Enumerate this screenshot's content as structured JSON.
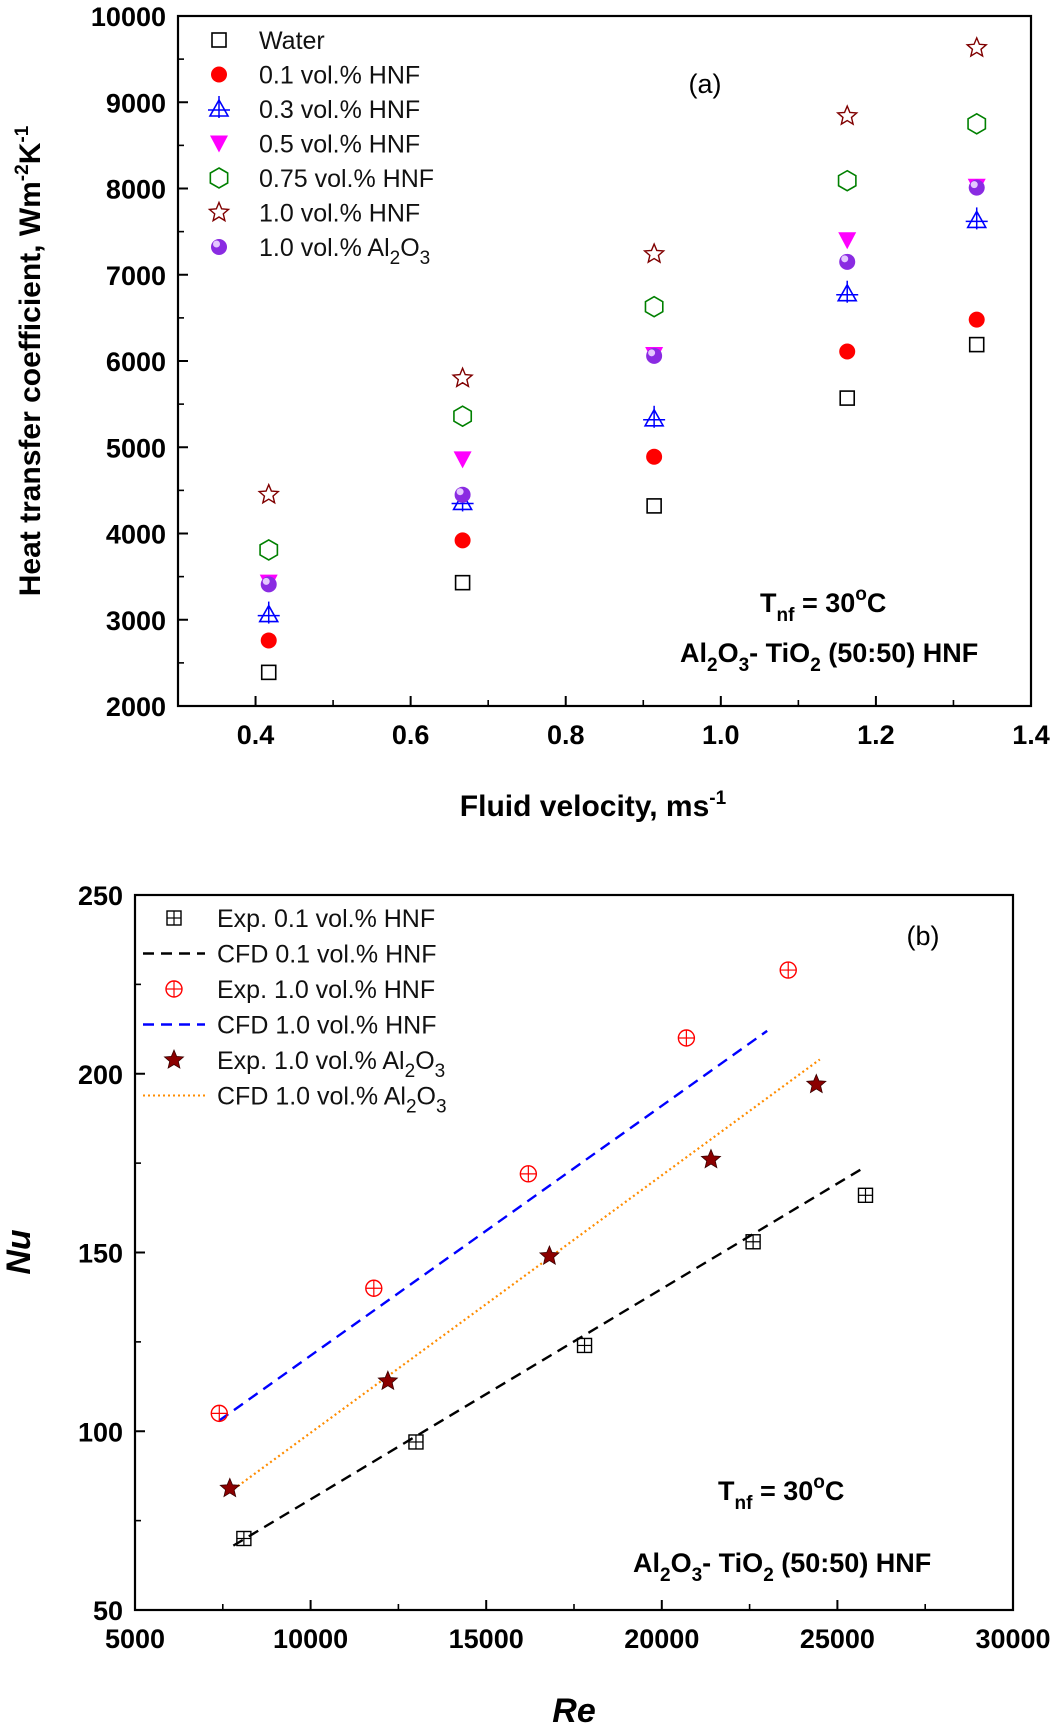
{
  "chart_data": [
    {
      "type": "scatter",
      "panel_label": "(a)",
      "xlabel": "Fluid velocity, ms",
      "xlabel_sup": "-1",
      "ylabel": "Heat transfer coefficient, Wm",
      "ylabel_sup1": "-2",
      "ylabel_mid": "K",
      "ylabel_sup2": "-1",
      "xlim": [
        0.3,
        1.4
      ],
      "ylim": [
        2000,
        10000
      ],
      "xticks": [
        "0.4",
        "0.6",
        "0.8",
        "1.0",
        "1.2",
        "1.4"
      ],
      "yticks": [
        "2000",
        "3000",
        "4000",
        "5000",
        "6000",
        "7000",
        "8000",
        "9000",
        "10000"
      ],
      "legend_position": "top-left",
      "annotation_temp": {
        "main": "T",
        "sub": "nf",
        "value": " = 30",
        "sup": "o",
        "unit": "C"
      },
      "annotation_material": [
        "Al",
        "2",
        "O",
        "3",
        "- TiO",
        "2",
        " (50:50) HNF"
      ],
      "x": [
        0.417,
        0.667,
        0.914,
        1.163,
        1.33
      ],
      "series": [
        {
          "name": "Water",
          "marker": "open-square",
          "color": "#000000",
          "values": [
            2390,
            3430,
            4320,
            5570,
            6190
          ]
        },
        {
          "name": "0.1 vol.% HNF",
          "marker": "filled-circle",
          "color": "#ff0000",
          "values": [
            2760,
            3920,
            4890,
            6110,
            6480
          ]
        },
        {
          "name": "0.3 vol.% HNF",
          "marker": "crossed-triangle",
          "color": "#0000ff",
          "values": [
            3060,
            4360,
            5330,
            6780,
            7630
          ]
        },
        {
          "name": "0.5 vol.% HNF",
          "marker": "filled-down-triangle",
          "color": "#ff00ff",
          "values": [
            3430,
            4860,
            6070,
            7400,
            8020
          ]
        },
        {
          "name": "0.75 vol.% HNF",
          "marker": "open-hexagon",
          "color": "#008000",
          "values": [
            3810,
            5360,
            6630,
            8090,
            8750
          ]
        },
        {
          "name": "1.0 vol.% HNF",
          "marker": "open-star",
          "color": "#800000",
          "values": [
            4450,
            5800,
            7240,
            8840,
            9630
          ]
        },
        {
          "name": "1.0 vol.% Al",
          "name_sub1": "2",
          "name_mid": "O",
          "name_sub2": "3",
          "marker": "filled-sphere",
          "color": "#8a2be2",
          "values": [
            3410,
            4450,
            6060,
            7150,
            8010
          ]
        }
      ]
    },
    {
      "type": "scatter",
      "panel_label": "(b)",
      "xlabel": "Re",
      "ylabel": "Nu",
      "xlim": [
        5000,
        30000
      ],
      "ylim": [
        50,
        250
      ],
      "xticks": [
        "5000",
        "10000",
        "15000",
        "20000",
        "25000",
        "30000"
      ],
      "yticks": [
        "50",
        "100",
        "150",
        "200",
        "250"
      ],
      "legend_position": "top-left",
      "annotation_temp": {
        "main": "T",
        "sub": "nf",
        "value": " = 30",
        "sup": "o",
        "unit": "C"
      },
      "annotation_material": [
        "Al",
        "2",
        "O",
        "3",
        "- TiO",
        "2",
        " (50:50) HNF"
      ],
      "series": [
        {
          "name": "Exp. 0.1 vol.% HNF",
          "kind": "points",
          "marker": "boxed-plus",
          "color": "#000000",
          "x": [
            8100,
            13000,
            17800,
            22600,
            25800
          ],
          "y": [
            70,
            97,
            124,
            153,
            166
          ]
        },
        {
          "name": "CFD 0.1 vol.% HNF",
          "kind": "line",
          "dash": "dashed",
          "color": "#000000",
          "x": [
            7800,
            25800
          ],
          "y": [
            68,
            174
          ]
        },
        {
          "name": "Exp. 1.0 vol.% HNF",
          "kind": "points",
          "marker": "circled-plus",
          "color": "#ff0000",
          "x": [
            7400,
            11800,
            16200,
            20700,
            23600
          ],
          "y": [
            105,
            140,
            172,
            210,
            229
          ]
        },
        {
          "name": "CFD 1.0 vol.% HNF",
          "kind": "line",
          "dash": "dashed",
          "color": "#0000ff",
          "x": [
            7400,
            23000
          ],
          "y": [
            103,
            212
          ]
        },
        {
          "name": "Exp. 1.0 vol.% Al",
          "name_sub1": "2",
          "name_mid": "O",
          "name_sub2": "3",
          "kind": "points",
          "marker": "filled-star",
          "color": "#8b0000",
          "x": [
            7700,
            12200,
            16800,
            21400,
            24400
          ],
          "y": [
            84,
            114,
            149,
            176,
            197
          ]
        },
        {
          "name": "CFD 1.0 vol.% Al",
          "name_sub1": "2",
          "name_mid": "O",
          "name_sub2": "3",
          "kind": "line",
          "dash": "dotted",
          "color": "#ff8c00",
          "x": [
            7700,
            24500
          ],
          "y": [
            83,
            204
          ]
        }
      ]
    }
  ]
}
